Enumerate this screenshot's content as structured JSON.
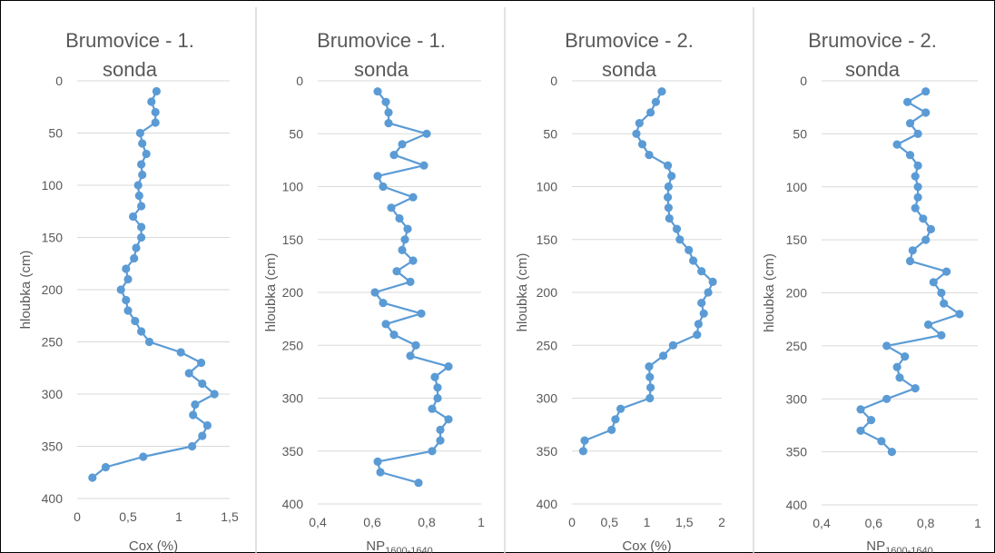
{
  "chart_data": [
    {
      "type": "line",
      "title_lines": [
        "Brumovice - 1.",
        "sonda"
      ],
      "xlabel": "Cox (%)",
      "ylabel": "hloubka (cm)",
      "xlim": [
        0,
        1.5
      ],
      "xticks": [
        "0",
        "0,5",
        "1",
        "1,5"
      ],
      "ylim": [
        0,
        400
      ],
      "yinverted": true,
      "yticks": [
        "0",
        "50",
        "100",
        "150",
        "200",
        "250",
        "300",
        "350",
        "400"
      ],
      "grid": "horizontal",
      "series_color": "#5b9bd5",
      "points": [
        [
          0.78,
          10
        ],
        [
          0.73,
          20
        ],
        [
          0.77,
          30
        ],
        [
          0.77,
          40
        ],
        [
          0.62,
          50
        ],
        [
          0.64,
          60
        ],
        [
          0.68,
          70
        ],
        [
          0.63,
          80
        ],
        [
          0.64,
          90
        ],
        [
          0.6,
          100
        ],
        [
          0.61,
          110
        ],
        [
          0.63,
          120
        ],
        [
          0.55,
          130
        ],
        [
          0.63,
          140
        ],
        [
          0.63,
          150
        ],
        [
          0.58,
          160
        ],
        [
          0.56,
          170
        ],
        [
          0.48,
          180
        ],
        [
          0.5,
          190
        ],
        [
          0.43,
          200
        ],
        [
          0.48,
          210
        ],
        [
          0.5,
          220
        ],
        [
          0.57,
          230
        ],
        [
          0.63,
          240
        ],
        [
          0.71,
          250
        ],
        [
          1.02,
          260
        ],
        [
          1.22,
          270
        ],
        [
          1.1,
          280
        ],
        [
          1.23,
          290
        ],
        [
          1.35,
          300
        ],
        [
          1.16,
          310
        ],
        [
          1.14,
          320
        ],
        [
          1.28,
          330
        ],
        [
          1.23,
          340
        ],
        [
          1.13,
          350
        ],
        [
          0.65,
          360
        ],
        [
          0.28,
          370
        ],
        [
          0.15,
          380
        ]
      ]
    },
    {
      "type": "line",
      "title_lines": [
        "Brumovice - 1.",
        "sonda"
      ],
      "xlabel": "NP",
      "xlabel_sub": "1600-1640",
      "ylabel": "hloubka (cm)",
      "xlim": [
        0.4,
        1
      ],
      "xticks": [
        "0,4",
        "0,6",
        "0,8",
        "1"
      ],
      "ylim": [
        0,
        400
      ],
      "yinverted": true,
      "yticks": [
        "0",
        "50",
        "100",
        "150",
        "200",
        "250",
        "300",
        "350",
        "400"
      ],
      "grid": "horizontal",
      "series_color": "#5b9bd5",
      "points": [
        [
          0.62,
          10
        ],
        [
          0.65,
          20
        ],
        [
          0.66,
          30
        ],
        [
          0.66,
          40
        ],
        [
          0.8,
          50
        ],
        [
          0.71,
          60
        ],
        [
          0.68,
          70
        ],
        [
          0.79,
          80
        ],
        [
          0.62,
          90
        ],
        [
          0.64,
          100
        ],
        [
          0.75,
          110
        ],
        [
          0.67,
          120
        ],
        [
          0.7,
          130
        ],
        [
          0.73,
          140
        ],
        [
          0.72,
          150
        ],
        [
          0.71,
          160
        ],
        [
          0.75,
          170
        ],
        [
          0.69,
          180
        ],
        [
          0.74,
          190
        ],
        [
          0.61,
          200
        ],
        [
          0.64,
          210
        ],
        [
          0.78,
          220
        ],
        [
          0.65,
          230
        ],
        [
          0.68,
          240
        ],
        [
          0.76,
          250
        ],
        [
          0.74,
          260
        ],
        [
          0.88,
          270
        ],
        [
          0.83,
          280
        ],
        [
          0.84,
          290
        ],
        [
          0.84,
          300
        ],
        [
          0.82,
          310
        ],
        [
          0.88,
          320
        ],
        [
          0.85,
          330
        ],
        [
          0.85,
          340
        ],
        [
          0.82,
          350
        ],
        [
          0.62,
          360
        ],
        [
          0.63,
          370
        ],
        [
          0.77,
          380
        ]
      ]
    },
    {
      "type": "line",
      "title_lines": [
        "Brumovice - 2.",
        "sonda"
      ],
      "xlabel": "Cox (%)",
      "ylabel": "hloubka (cm)",
      "xlim": [
        0,
        2
      ],
      "xticks": [
        "0",
        "0,5",
        "1",
        "1,5",
        "2"
      ],
      "ylim": [
        0,
        400
      ],
      "yinverted": true,
      "yticks": [
        "0",
        "50",
        "100",
        "150",
        "200",
        "250",
        "300",
        "350",
        "400"
      ],
      "grid": "horizontal",
      "series_color": "#5b9bd5",
      "points": [
        [
          1.2,
          10
        ],
        [
          1.12,
          20
        ],
        [
          1.05,
          30
        ],
        [
          0.9,
          40
        ],
        [
          0.86,
          50
        ],
        [
          0.94,
          60
        ],
        [
          1.03,
          70
        ],
        [
          1.28,
          80
        ],
        [
          1.33,
          90
        ],
        [
          1.29,
          100
        ],
        [
          1.28,
          110
        ],
        [
          1.29,
          120
        ],
        [
          1.3,
          130
        ],
        [
          1.4,
          140
        ],
        [
          1.44,
          150
        ],
        [
          1.56,
          160
        ],
        [
          1.62,
          170
        ],
        [
          1.73,
          180
        ],
        [
          1.88,
          190
        ],
        [
          1.82,
          200
        ],
        [
          1.73,
          210
        ],
        [
          1.76,
          220
        ],
        [
          1.69,
          230
        ],
        [
          1.67,
          240
        ],
        [
          1.35,
          250
        ],
        [
          1.22,
          260
        ],
        [
          1.03,
          270
        ],
        [
          1.04,
          280
        ],
        [
          1.05,
          290
        ],
        [
          1.04,
          300
        ],
        [
          0.65,
          310
        ],
        [
          0.58,
          320
        ],
        [
          0.53,
          330
        ],
        [
          0.17,
          340
        ],
        [
          0.15,
          350
        ]
      ]
    },
    {
      "type": "line",
      "title_lines": [
        "Brumovice - 2.",
        "sonda"
      ],
      "xlabel": "NP",
      "xlabel_sub": "1600-1640",
      "ylabel": "hloubka (cm)",
      "xlim": [
        0.4,
        1
      ],
      "xticks": [
        "0,4",
        "0,6",
        "0,8",
        "1"
      ],
      "ylim": [
        0,
        400
      ],
      "yinverted": true,
      "yticks": [
        "0",
        "50",
        "100",
        "150",
        "200",
        "250",
        "300",
        "350",
        "400"
      ],
      "grid": "horizontal",
      "series_color": "#5b9bd5",
      "points": [
        [
          0.8,
          10
        ],
        [
          0.73,
          20
        ],
        [
          0.8,
          30
        ],
        [
          0.74,
          40
        ],
        [
          0.77,
          50
        ],
        [
          0.69,
          60
        ],
        [
          0.74,
          70
        ],
        [
          0.77,
          80
        ],
        [
          0.76,
          90
        ],
        [
          0.77,
          100
        ],
        [
          0.77,
          110
        ],
        [
          0.76,
          120
        ],
        [
          0.79,
          130
        ],
        [
          0.82,
          140
        ],
        [
          0.8,
          150
        ],
        [
          0.75,
          160
        ],
        [
          0.74,
          170
        ],
        [
          0.88,
          180
        ],
        [
          0.83,
          190
        ],
        [
          0.86,
          200
        ],
        [
          0.87,
          210
        ],
        [
          0.93,
          220
        ],
        [
          0.81,
          230
        ],
        [
          0.86,
          240
        ],
        [
          0.65,
          250
        ],
        [
          0.72,
          260
        ],
        [
          0.69,
          270
        ],
        [
          0.7,
          280
        ],
        [
          0.76,
          290
        ],
        [
          0.65,
          300
        ],
        [
          0.55,
          310
        ],
        [
          0.59,
          320
        ],
        [
          0.55,
          330
        ],
        [
          0.63,
          340
        ],
        [
          0.67,
          350
        ]
      ]
    }
  ]
}
